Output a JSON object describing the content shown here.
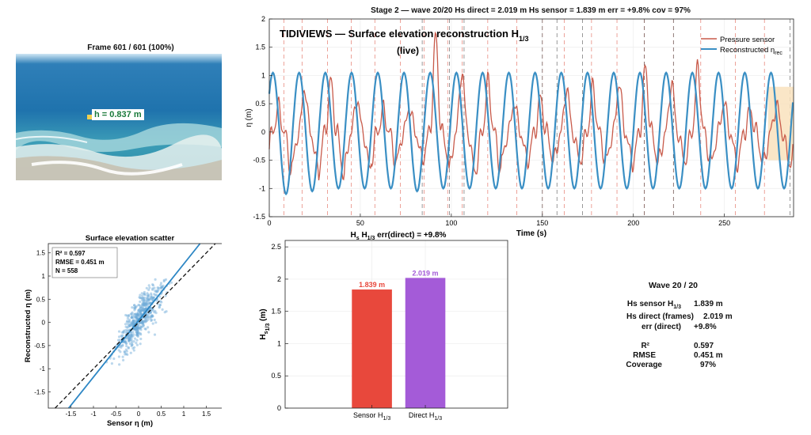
{
  "photo": {
    "title": "Frame 601 / 601  (100%)",
    "label": "h = 0.837 m"
  },
  "timeseries": {
    "title": "Stage 2 — wave 20/20   Hs direct = 2.019 m   Hs sensor = 1.839 m   err = +9.8%   cov = 97%",
    "overlay_title": "TIDIVIEWS — Surface elevation reconstruction  H",
    "overlay_title_sub": "1/3",
    "overlay_subtitle": "(live)",
    "xlabel": "Time (s)",
    "ylabel": "η (m)",
    "legend": {
      "pressure": "Pressure sensor",
      "reconstructed": "Reconstructed η",
      "reconstructed_sub": "rec"
    },
    "colors": {
      "pressure": "#c85a4a",
      "reconstructed": "#3a8fc4",
      "highlight": "#f9e2bd"
    }
  },
  "scatter": {
    "title": "Surface elevation scatter",
    "xlabel": "Sensor η (m)",
    "ylabel": "Reconstructed η (m)",
    "stats": [
      "R² = 0.597",
      "RMSE = 0.451 m",
      "N = 558"
    ]
  },
  "bars": {
    "title_prefix": "H",
    "title_s": "s",
    "title_mid": " H",
    "title_sub": "1/3",
    "title_rest": "   err(direct) = +9.8%",
    "ylabel": "H",
    "ylabel_s": "s",
    "ylabel_sub": "1/3",
    "ylabel_unit": " (m)"
  },
  "stats": {
    "heading": "Wave 20 / 20",
    "rows": [
      {
        "label": "Hs sensor H",
        "label_sub": "1/3",
        "value": "1.839 m"
      },
      {
        "label": "Hs direct (frames)",
        "label_sub": "",
        "value": "2.019 m"
      },
      {
        "label": "err (direct)",
        "label_sub": "",
        "value": "+9.8%"
      },
      {
        "label": "R²",
        "label_sub": "",
        "value": "0.597"
      },
      {
        "label": "RMSE",
        "label_sub": "",
        "value": "0.451 m"
      },
      {
        "label": "Coverage",
        "label_sub": "",
        "value": "97%"
      }
    ]
  },
  "chart_data": [
    {
      "type": "line",
      "xlim": [
        0,
        288
      ],
      "ylim": [
        -1.5,
        2
      ],
      "xticks": [
        0,
        50,
        100,
        150,
        200,
        250
      ],
      "yticks": [
        -1.5,
        -1,
        -0.5,
        0,
        0.5,
        1,
        1.5,
        2
      ],
      "wave_period_s": 14.4,
      "reconstructed_peaks": [
        1.05,
        1.05,
        1.05,
        1.05,
        1.05,
        1.05,
        1.05,
        1.05,
        1.05,
        1.05,
        1.05,
        1.05,
        1.05,
        1.05,
        1.05,
        1.05,
        1.05,
        1.05,
        1.05,
        1.05
      ],
      "reconstructed_troughs": [
        -1.1,
        -1.05,
        -1.0,
        -1.0,
        -1.0,
        -1.05,
        -1.0,
        -1.0,
        -1.0,
        -1.0,
        -1.0,
        -1.0,
        -1.0,
        -1.0,
        -1.0,
        -1.0,
        -1.0,
        -1.0,
        -1.0,
        -1.0
      ],
      "pressure_peaks": [
        0.45,
        0.8,
        0.9,
        0.6,
        0.4,
        0.45,
        1.7,
        1.1,
        0.9,
        0.55,
        0.6,
        0.8,
        0.8,
        0.9,
        1.15,
        0.9,
        1.15,
        0.55,
        0.4,
        0.5
      ],
      "pressure_troughs": [
        -0.7,
        -0.6,
        -0.75,
        -0.65,
        -0.55,
        -0.5,
        -0.45,
        -0.7,
        -0.7,
        -0.5,
        -0.5,
        -0.5,
        -0.5,
        -0.5,
        -0.55,
        -0.5,
        -0.5,
        -0.55,
        -0.55,
        -0.55
      ],
      "event_lines_dashed_red": [
        8,
        18,
        32,
        45,
        58,
        72,
        85,
        98,
        106,
        120,
        136,
        150,
        162,
        177,
        191,
        206,
        222,
        237,
        256,
        272
      ],
      "event_lines_dashed_black": [
        84,
        99,
        107,
        150,
        158,
        172,
        206,
        222,
        286
      ],
      "highlight_range": [
        274,
        288
      ],
      "series": [
        {
          "name": "Pressure sensor",
          "color": "#c85a4a"
        },
        {
          "name": "Reconstructed η_rec",
          "color": "#3a8fc4"
        }
      ]
    },
    {
      "type": "scatter",
      "xlim": [
        -2.0,
        2.0
      ],
      "ylim": [
        -1.85,
        1.7
      ],
      "xticks": [
        -1.5,
        -1,
        -0.5,
        0,
        0.5,
        1,
        1.5
      ],
      "yticks": [
        -1.5,
        -1,
        -0.5,
        0,
        0.5,
        1,
        1.5
      ],
      "n_points": 558,
      "fit_line": {
        "slope": 1.22,
        "intercept": 0.04
      },
      "identity_line": true
    },
    {
      "type": "bar",
      "categories": [
        "Sensor H1/3",
        "Direct H1/3"
      ],
      "category_main": [
        "Sensor H",
        "Direct H"
      ],
      "category_sub": [
        "1/3",
        "1/3"
      ],
      "values": [
        1.839,
        2.019
      ],
      "value_labels": [
        "1.839 m",
        "2.019 m"
      ],
      "colors": [
        "#e8483c",
        "#a45bd8"
      ],
      "ylim": [
        0,
        2.6
      ],
      "yticks": [
        0,
        0.5,
        1,
        1.5,
        2,
        2.5
      ]
    }
  ]
}
